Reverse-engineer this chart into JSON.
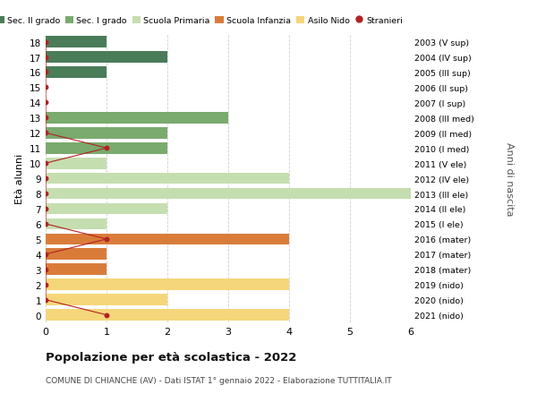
{
  "ages": [
    18,
    17,
    16,
    15,
    14,
    13,
    12,
    11,
    10,
    9,
    8,
    7,
    6,
    5,
    4,
    3,
    2,
    1,
    0
  ],
  "right_labels": [
    "2003 (V sup)",
    "2004 (IV sup)",
    "2005 (III sup)",
    "2006 (II sup)",
    "2007 (I sup)",
    "2008 (III med)",
    "2009 (II med)",
    "2010 (I med)",
    "2011 (V ele)",
    "2012 (IV ele)",
    "2013 (III ele)",
    "2014 (II ele)",
    "2015 (I ele)",
    "2016 (mater)",
    "2017 (mater)",
    "2018 (mater)",
    "2019 (nido)",
    "2020 (nido)",
    "2021 (nido)"
  ],
  "sec2_values": [
    1,
    2,
    1,
    0,
    0,
    0,
    0,
    0,
    0,
    0,
    0,
    0,
    0,
    0,
    0,
    0,
    0,
    0,
    0
  ],
  "sec1_values": [
    0,
    0,
    0,
    0,
    0,
    3,
    2,
    2,
    0,
    0,
    0,
    0,
    0,
    0,
    0,
    0,
    0,
    0,
    0
  ],
  "primaria_values": [
    0,
    0,
    0,
    0,
    0,
    0,
    0,
    0,
    1,
    4,
    6,
    2,
    1,
    0,
    0,
    0,
    0,
    0,
    0
  ],
  "infanzia_values": [
    0,
    0,
    0,
    0,
    0,
    0,
    0,
    0,
    0,
    0,
    0,
    0,
    0,
    4,
    1,
    1,
    0,
    0,
    0
  ],
  "nido_values": [
    0,
    0,
    0,
    0,
    0,
    0,
    0,
    0,
    0,
    0,
    0,
    0,
    0,
    0,
    0,
    0,
    4,
    2,
    4
  ],
  "stranieri_ages": [
    18,
    17,
    16,
    15,
    14,
    13,
    12,
    11,
    10,
    9,
    8,
    7,
    6,
    5,
    4,
    3,
    2,
    1,
    0
  ],
  "stranieri_values": [
    0,
    0,
    0,
    0,
    0,
    0,
    0,
    1,
    0,
    0,
    0,
    0,
    0,
    1,
    0,
    0,
    0,
    0,
    1
  ],
  "color_sec2": "#4a7c59",
  "color_sec1": "#7aaa6e",
  "color_primaria": "#c5deb0",
  "color_infanzia": "#d97c3a",
  "color_nido": "#f5d67a",
  "color_stranieri": "#b22222",
  "color_bg": "#ffffff",
  "color_grid": "#d0d0d0",
  "title": "Popolazione per età scolastica - 2022",
  "subtitle": "COMUNE DI CHIANCHE (AV) - Dati ISTAT 1° gennaio 2022 - Elaborazione TUTTITALIA.IT",
  "ylabel": "Età alunni",
  "ylabel2": "Anni di nascita",
  "xlim": [
    0,
    6
  ],
  "bar_height": 0.75
}
